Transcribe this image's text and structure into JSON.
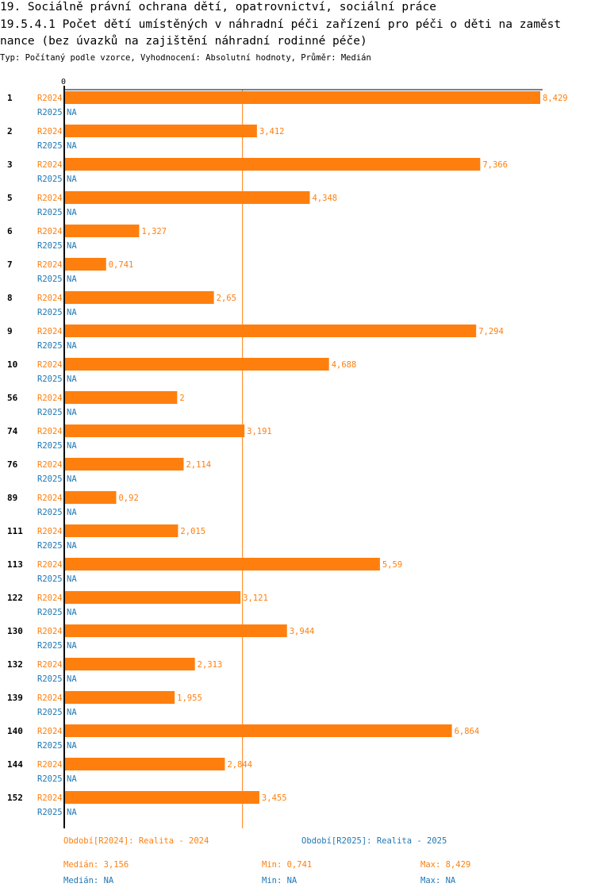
{
  "title_line1": "19. Sociálně právní ochrana dětí, opatrovnictví, sociální práce",
  "title_line2": "19.5.4.1 Počet dětí umístěných v náhradní péči zařízení pro péči o děti na zaměst",
  "title_line3": "nance (bez úvazků na zajištění náhradní rodinné péče)",
  "subtitle": "Typ: Počítaný podle vzorce, Vyhodnocení: Absolutní hodnoty, Průměr: Medián",
  "colors": {
    "series_2024": "#ff7f0e",
    "series_2025": "#1f77b4",
    "axis": "#000000",
    "median_line": "#ff7f0e"
  },
  "chart_data": {
    "type": "bar",
    "orientation": "horizontal",
    "axis_zero_label": "0",
    "categories": [
      "1",
      "2",
      "3",
      "5",
      "6",
      "7",
      "8",
      "9",
      "10",
      "56",
      "74",
      "76",
      "89",
      "111",
      "113",
      "122",
      "130",
      "132",
      "139",
      "140",
      "144",
      "152"
    ],
    "series": [
      {
        "name": "R2024",
        "values": [
          8.429,
          3.412,
          7.366,
          4.348,
          1.327,
          0.741,
          2.65,
          7.294,
          4.688,
          2,
          3.191,
          2.114,
          0.92,
          2.015,
          5.59,
          3.121,
          3.944,
          2.313,
          1.955,
          6.864,
          2.844,
          3.455
        ],
        "labels": [
          "8,429",
          "3,412",
          "7,366",
          "4,348",
          "1,327",
          "0,741",
          "2,65",
          "7,294",
          "4,688",
          "2",
          "3,191",
          "2,114",
          "0,92",
          "2,015",
          "5,59",
          "3,121",
          "3,944",
          "2,313",
          "1,955",
          "6,864",
          "2,844",
          "3,455"
        ]
      },
      {
        "name": "R2025",
        "values": [
          null,
          null,
          null,
          null,
          null,
          null,
          null,
          null,
          null,
          null,
          null,
          null,
          null,
          null,
          null,
          null,
          null,
          null,
          null,
          null,
          null,
          null
        ],
        "labels": [
          "NA",
          "NA",
          "NA",
          "NA",
          "NA",
          "NA",
          "NA",
          "NA",
          "NA",
          "NA",
          "NA",
          "NA",
          "NA",
          "NA",
          "NA",
          "NA",
          "NA",
          "NA",
          "NA",
          "NA",
          "NA",
          "NA"
        ]
      }
    ],
    "median_2024": 3.156,
    "xlim": [
      0,
      8.429
    ]
  },
  "legend": {
    "period_2024": "Období[R2024]: Realita - 2024",
    "period_2025": "Období[R2025]: Realita - 2025"
  },
  "stats": {
    "median_2024": "Medián: 3,156",
    "min_2024": "Min: 0,741",
    "max_2024": "Max: 8,429",
    "median_2025": "Medián: NA",
    "min_2025": "Min: NA",
    "max_2025": "Max: NA"
  }
}
